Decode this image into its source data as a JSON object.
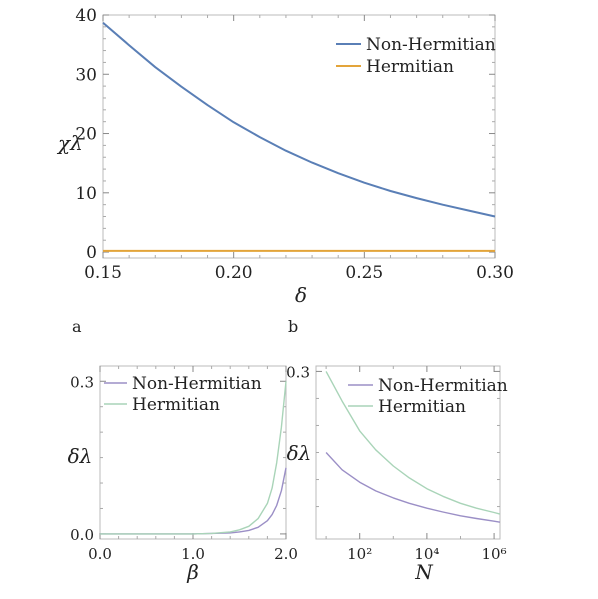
{
  "panel_labels": [
    "a",
    "b"
  ],
  "colors": {
    "non_hermitian_a": "#5a7fb6",
    "hermitian_a": "#e3a43a",
    "non_hermitian_b": "#9b8fc6",
    "hermitian_b": "#a9d4b8",
    "frame": "#bbbbbb"
  },
  "chart_data": [
    {
      "type": "line",
      "xlabel": "δ",
      "ylabel": "χλ",
      "xlim": [
        0.15,
        0.3
      ],
      "ylim": [
        -1,
        40
      ],
      "xticks": [
        "0.15",
        "0.20",
        "0.25",
        "0.30"
      ],
      "yticks": [
        "0",
        "10",
        "20",
        "30",
        "40"
      ],
      "legend_position": "top-right",
      "series": [
        {
          "name": "Non-Hermitian",
          "x": [
            0.15,
            0.16,
            0.17,
            0.18,
            0.19,
            0.2,
            0.21,
            0.22,
            0.23,
            0.24,
            0.25,
            0.26,
            0.27,
            0.28,
            0.29,
            0.3
          ],
          "y": [
            38.7,
            34.9,
            31.2,
            27.9,
            24.8,
            21.9,
            19.4,
            17.1,
            15.1,
            13.3,
            11.7,
            10.3,
            9.1,
            8.0,
            7.0,
            6.0
          ]
        },
        {
          "name": "Hermitian",
          "x": [
            0.15,
            0.3
          ],
          "y": [
            0.2,
            0.2
          ]
        }
      ]
    },
    {
      "type": "line",
      "xlabel": "β",
      "ylabel": "δλ",
      "xlim": [
        0.0,
        2.0
      ],
      "ylim": [
        -0.01,
        0.33
      ],
      "xticks": [
        "0.0",
        "1.0",
        "2.0"
      ],
      "yticks": [
        "0.0",
        "0.3"
      ],
      "legend_position": "top-right",
      "series": [
        {
          "name": "Non-Hermitian",
          "x": [
            0.0,
            0.5,
            1.0,
            1.2,
            1.4,
            1.5,
            1.6,
            1.7,
            1.8,
            1.85,
            1.9,
            1.95,
            2.0
          ],
          "y": [
            0.0,
            0.0,
            0.0,
            0.001,
            0.002,
            0.004,
            0.007,
            0.013,
            0.026,
            0.038,
            0.056,
            0.085,
            0.13
          ]
        },
        {
          "name": "Hermitian",
          "x": [
            0.0,
            0.5,
            1.0,
            1.2,
            1.4,
            1.5,
            1.6,
            1.7,
            1.8,
            1.85,
            1.9,
            1.95,
            2.0
          ],
          "y": [
            0.0,
            0.0,
            0.0,
            0.001,
            0.004,
            0.008,
            0.015,
            0.03,
            0.06,
            0.09,
            0.14,
            0.21,
            0.3
          ]
        }
      ]
    },
    {
      "type": "line",
      "xlabel": "N",
      "ylabel": "δλ",
      "xscale": "log",
      "xlim": [
        5,
        1500000
      ],
      "ylim": [
        -0.01,
        0.31
      ],
      "xticks": [
        "10²",
        "10⁴",
        "10⁶"
      ],
      "yticks": [
        "0.3"
      ],
      "legend_position": "top-right",
      "series": [
        {
          "name": "Non-Hermitian",
          "x": [
            10,
            30,
            100,
            300,
            1000,
            3000,
            10000,
            30000,
            100000,
            300000,
            1000000,
            1500000
          ],
          "y": [
            0.15,
            0.118,
            0.095,
            0.079,
            0.066,
            0.056,
            0.047,
            0.04,
            0.033,
            0.028,
            0.023,
            0.021
          ]
        },
        {
          "name": "Hermitian",
          "x": [
            10,
            30,
            100,
            300,
            1000,
            3000,
            10000,
            30000,
            100000,
            300000,
            1000000,
            1500000
          ],
          "y": [
            0.3,
            0.245,
            0.19,
            0.155,
            0.125,
            0.103,
            0.083,
            0.069,
            0.056,
            0.047,
            0.039,
            0.036
          ]
        }
      ]
    }
  ]
}
